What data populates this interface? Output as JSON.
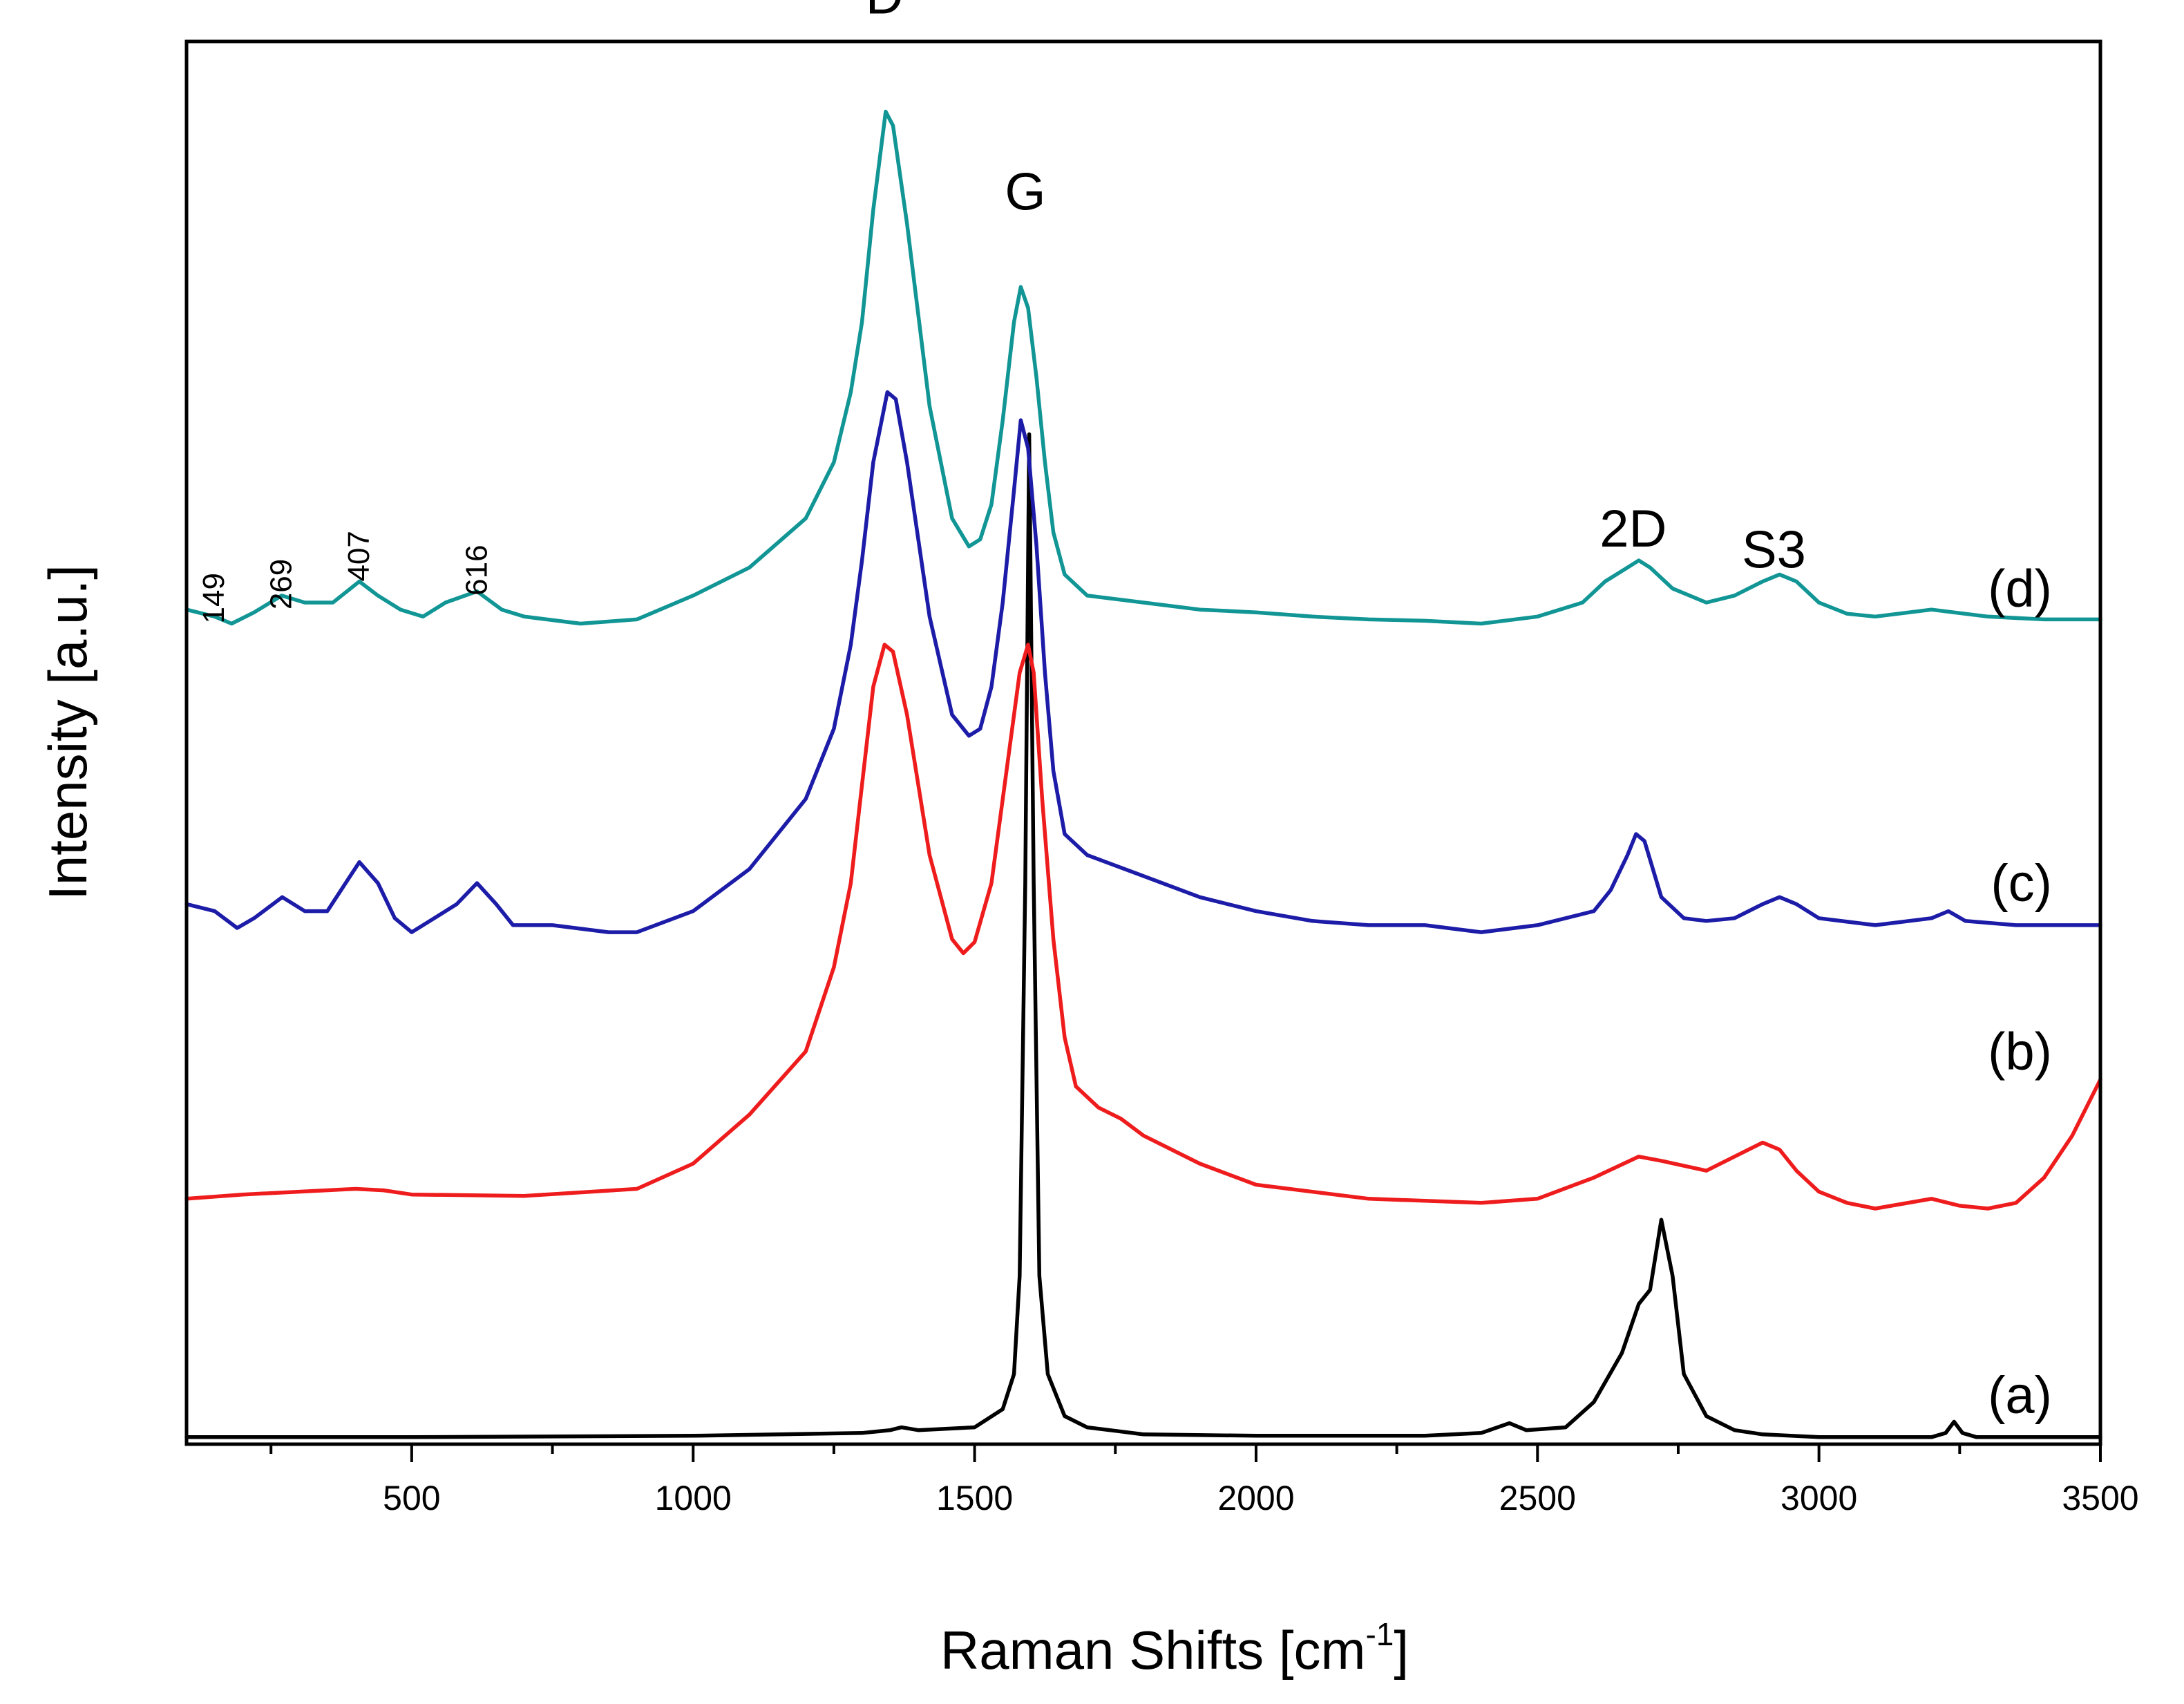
{
  "chart_data": {
    "type": "line",
    "title": "",
    "xlabel": "Raman Shifts [cm",
    "xlabel_sup": "-1",
    "xlabel_close": "]",
    "ylabel": "Intensity [a.u.]",
    "xlim": [
      100,
      3500
    ],
    "ylim": [
      0,
      100
    ],
    "xticks": [
      500,
      1000,
      1500,
      2000,
      2500,
      3000,
      3500
    ],
    "grid": false,
    "peak_labels": [
      {
        "text": "D",
        "x": 1340,
        "y": 102
      },
      {
        "text": "G",
        "x": 1590,
        "y": 88
      },
      {
        "text": "2D",
        "x": 2670,
        "y": 64
      },
      {
        "text": "S3",
        "x": 2920,
        "y": 62.5
      }
    ],
    "small_labels": [
      {
        "text": "149",
        "x": 149,
        "y": 58.5
      },
      {
        "text": "269",
        "x": 269,
        "y": 59.5
      },
      {
        "text": "407",
        "x": 407,
        "y": 61.5
      },
      {
        "text": "616",
        "x": 616,
        "y": 60.5
      }
    ],
    "series": [
      {
        "name": "(a)",
        "color": "#000000",
        "label_y": 3.5,
        "x": [
          100,
          500,
          1000,
          1300,
          1350,
          1370,
          1400,
          1500,
          1550,
          1570,
          1580,
          1590,
          1597,
          1605,
          1615,
          1630,
          1660,
          1700,
          1760,
          1800,
          2000,
          2300,
          2400,
          2450,
          2480,
          2550,
          2600,
          2650,
          2680,
          2700,
          2720,
          2740,
          2760,
          2800,
          2850,
          2900,
          3000,
          3200,
          3225,
          3240,
          3255,
          3280,
          3500
        ],
        "y": [
          0.5,
          0.5,
          0.6,
          0.8,
          1.0,
          1.2,
          1.0,
          1.2,
          2.5,
          5.0,
          12.0,
          40.0,
          72.0,
          40.0,
          12.0,
          5.0,
          2.0,
          1.2,
          0.9,
          0.7,
          0.6,
          0.6,
          0.8,
          1.5,
          1.0,
          1.2,
          3.0,
          6.5,
          10.0,
          11.0,
          16.0,
          12.0,
          5.0,
          2.0,
          1.0,
          0.7,
          0.5,
          0.5,
          0.8,
          1.6,
          0.8,
          0.5,
          0.5
        ]
      },
      {
        "name": "(b)",
        "color": "#ee1c1c",
        "label_y": 28.0,
        "x": [
          100,
          200,
          300,
          400,
          450,
          500,
          700,
          900,
          1000,
          1100,
          1200,
          1250,
          1280,
          1300,
          1320,
          1340,
          1355,
          1380,
          1420,
          1460,
          1480,
          1500,
          1530,
          1560,
          1580,
          1595,
          1605,
          1620,
          1640,
          1660,
          1680,
          1720,
          1760,
          1800,
          1900,
          2000,
          2200,
          2400,
          2500,
          2600,
          2680,
          2720,
          2800,
          2850,
          2900,
          2930,
          2960,
          3000,
          3050,
          3100,
          3200,
          3250,
          3300,
          3350,
          3400,
          3450,
          3500
        ],
        "y": [
          17.5,
          17.8,
          18.0,
          18.2,
          18.1,
          17.8,
          17.7,
          18.2,
          20.0,
          23.5,
          28.0,
          34.0,
          40.0,
          47.0,
          54.0,
          57.0,
          56.5,
          52.0,
          42.0,
          36.0,
          35.0,
          35.8,
          40.0,
          49.0,
          55.0,
          57.0,
          55.0,
          46.0,
          36.0,
          29.0,
          25.5,
          24.0,
          23.2,
          22.0,
          20.0,
          18.5,
          17.5,
          17.2,
          17.5,
          19.0,
          20.5,
          20.2,
          19.5,
          20.5,
          21.5,
          21.0,
          19.5,
          18.0,
          17.2,
          16.8,
          17.5,
          17.0,
          16.8,
          17.2,
          19.0,
          22.0,
          26.0
        ]
      },
      {
        "name": "(c)",
        "color": "#1c1ca8",
        "label_y": 40.0,
        "x": [
          100,
          150,
          190,
          220,
          270,
          310,
          350,
          407,
          440,
          470,
          500,
          540,
          580,
          616,
          650,
          680,
          750,
          850,
          900,
          1000,
          1100,
          1200,
          1250,
          1280,
          1300,
          1320,
          1345,
          1360,
          1380,
          1420,
          1460,
          1490,
          1510,
          1530,
          1550,
          1570,
          1582,
          1595,
          1610,
          1625,
          1640,
          1660,
          1700,
          1800,
          1900,
          2000,
          2100,
          2200,
          2300,
          2400,
          2500,
          2600,
          2630,
          2660,
          2675,
          2690,
          2720,
          2760,
          2800,
          2850,
          2900,
          2930,
          2960,
          3000,
          3100,
          3200,
          3230,
          3260,
          3350,
          3500
        ],
        "y": [
          38.5,
          38.0,
          36.8,
          37.5,
          39.0,
          38.0,
          38.0,
          41.5,
          40.0,
          37.5,
          36.5,
          37.5,
          38.5,
          40.0,
          38.5,
          37.0,
          37.0,
          36.5,
          36.5,
          38.0,
          41.0,
          46.0,
          51.0,
          57.0,
          63.0,
          70.0,
          75.0,
          74.5,
          70.0,
          59.0,
          52.0,
          50.5,
          51.0,
          54.0,
          60.0,
          68.0,
          73.0,
          71.0,
          64.0,
          55.0,
          48.0,
          43.5,
          42.0,
          40.5,
          39.0,
          38.0,
          37.3,
          37.0,
          37.0,
          36.5,
          37.0,
          38.0,
          39.5,
          42.0,
          43.5,
          43.0,
          39.0,
          37.5,
          37.3,
          37.5,
          38.5,
          39.0,
          38.5,
          37.5,
          37.0,
          37.5,
          38.0,
          37.3,
          37.0,
          37.0
        ]
      },
      {
        "name": "(d)",
        "color": "#119595",
        "label_y": 61.0,
        "x": [
          100,
          150,
          180,
          220,
          269,
          310,
          360,
          407,
          440,
          480,
          520,
          560,
          616,
          660,
          700,
          800,
          900,
          1000,
          1100,
          1200,
          1250,
          1280,
          1300,
          1320,
          1342,
          1355,
          1380,
          1420,
          1460,
          1490,
          1510,
          1530,
          1550,
          1570,
          1582,
          1595,
          1610,
          1625,
          1640,
          1660,
          1700,
          1800,
          1900,
          2000,
          2100,
          2200,
          2300,
          2400,
          2500,
          2580,
          2620,
          2660,
          2680,
          2700,
          2740,
          2800,
          2850,
          2900,
          2930,
          2960,
          3000,
          3050,
          3100,
          3200,
          3300,
          3400,
          3500
        ],
        "y": [
          59.5,
          59.0,
          58.5,
          59.3,
          60.5,
          60.0,
          60.0,
          61.5,
          60.5,
          59.5,
          59.0,
          60.0,
          60.8,
          59.5,
          59.0,
          58.5,
          58.8,
          60.5,
          62.5,
          66.0,
          70.0,
          75.0,
          80.0,
          88.0,
          95.0,
          94.0,
          87.0,
          74.0,
          66.0,
          64.0,
          64.5,
          67.0,
          73.0,
          80.0,
          82.5,
          81.0,
          76.0,
          70.0,
          65.0,
          62.0,
          60.5,
          60.0,
          59.5,
          59.3,
          59.0,
          58.8,
          58.7,
          58.5,
          59.0,
          60.0,
          61.5,
          62.5,
          63.0,
          62.5,
          61.0,
          60.0,
          60.5,
          61.5,
          62.0,
          61.5,
          60.0,
          59.2,
          59.0,
          59.5,
          59.0,
          58.8,
          58.8
        ]
      }
    ]
  }
}
